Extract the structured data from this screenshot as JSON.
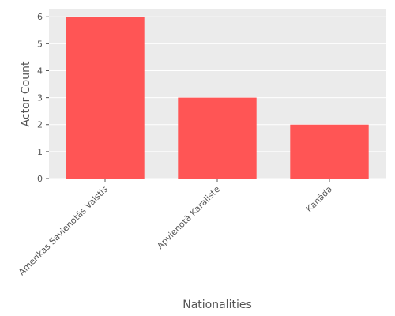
{
  "chart_data": {
    "type": "bar",
    "title": "",
    "categories": [
      "Amerikas Savienotās Valstis",
      "Apvienotā Karaliste",
      "Kanāda"
    ],
    "values": [
      6,
      3,
      2
    ],
    "xlabel": "Nationalities",
    "ylabel": "Actor Count",
    "ylim": [
      0,
      6.3
    ],
    "yticks": [
      0,
      1,
      2,
      3,
      4,
      5,
      6
    ],
    "grid": true,
    "legend": "none",
    "colors": {
      "bar": "#FF5555",
      "background": "#EBEBEB",
      "grid": "#FFFFFF",
      "text": "#555555"
    }
  }
}
